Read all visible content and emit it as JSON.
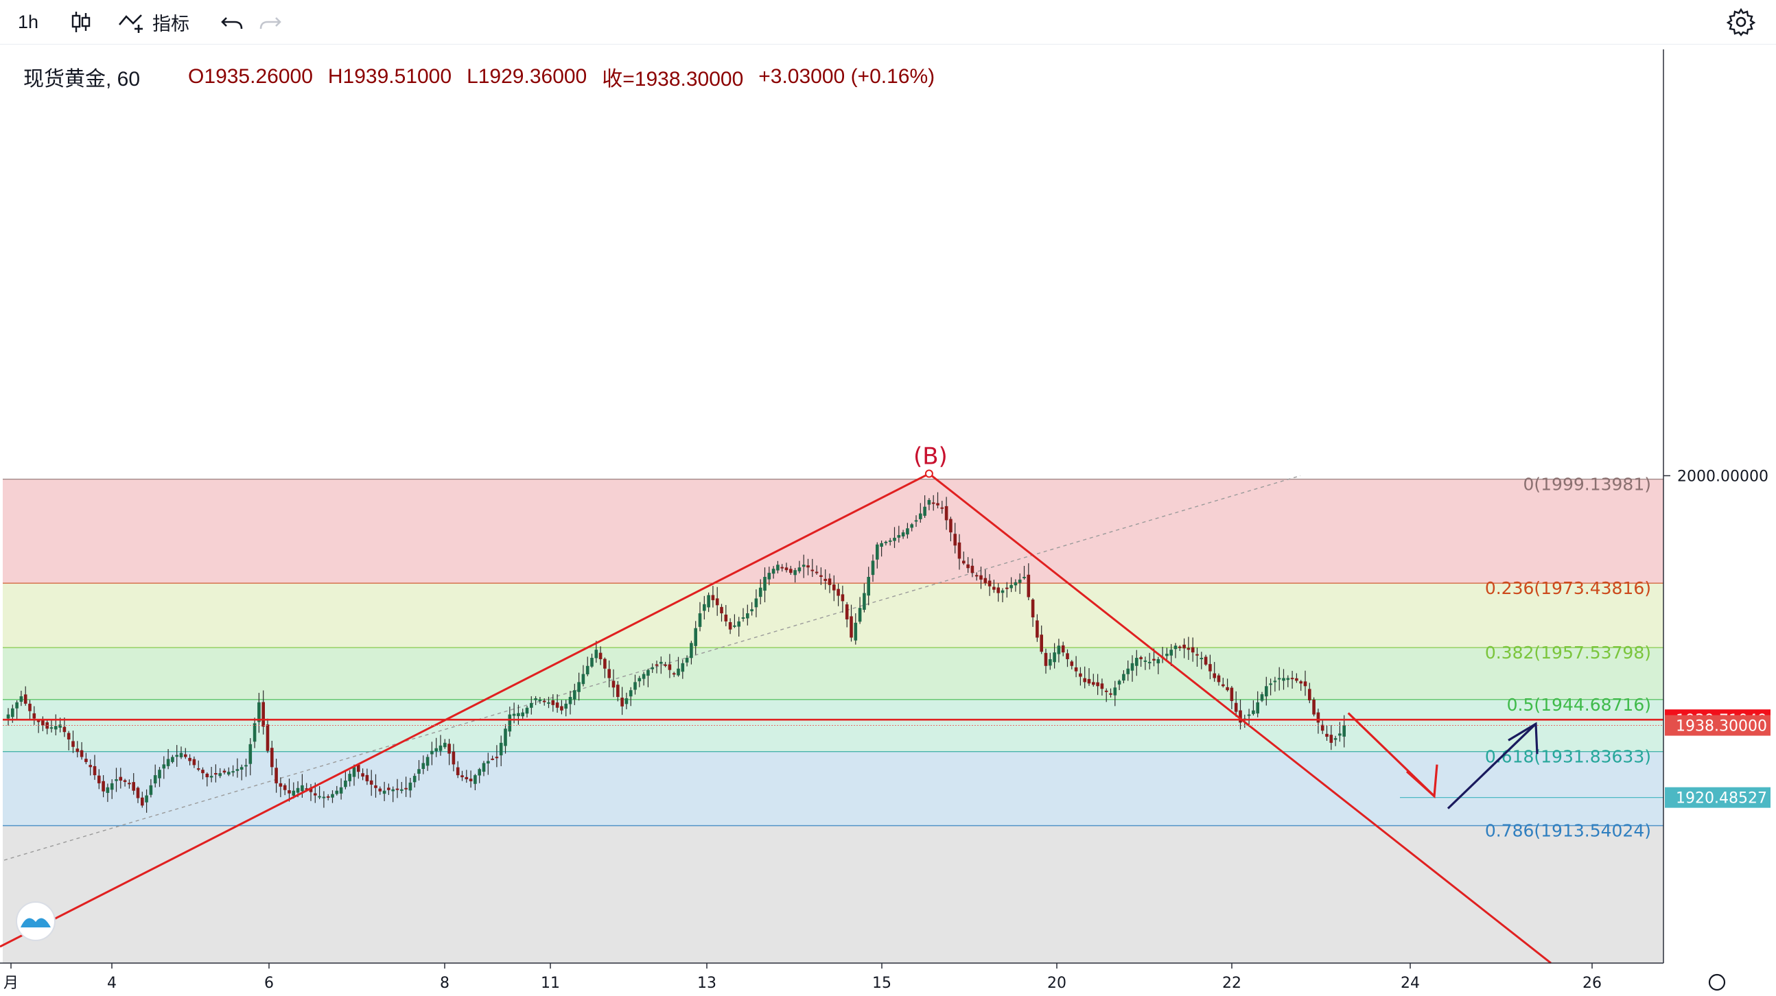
{
  "toolbar": {
    "interval": "1h",
    "indicators_label": "指标"
  },
  "legend": {
    "symbol": "现货黄金, 60",
    "open": "O1935.26000",
    "high": "H1939.51000",
    "low": "L1929.36000",
    "close": "收=1938.30000",
    "change": "+3.03000 (+0.16%)"
  },
  "colors": {
    "up": "#26a69a",
    "down": "#8b1a1a",
    "candle_body": "#1f6d4a",
    "zone_top": "#f6d1d3",
    "zone_236": "#ebf3d4",
    "zone_382": "#d6f1d5",
    "zone_500": "#d3f1e4",
    "zone_618": "#d3e5f2",
    "zone_bottom": "#e4e4e4",
    "wave_line": "#e02020",
    "projection_up": "#1a1a5e"
  },
  "chart_data": {
    "type": "candlestick",
    "symbol": "现货黄金",
    "interval": "60",
    "wave_label": "(B)",
    "x_ticks": [
      "月",
      "4",
      "6",
      "8",
      "11",
      "13",
      "15",
      "20",
      "22",
      "24",
      "26"
    ],
    "price_scale": {
      "label": "2000.00000",
      "price_labels": [
        {
          "text": "1939.71049",
          "value": 1939.71049,
          "bg": "#f20f1a"
        },
        {
          "text": "1938.30000",
          "value": 1938.3,
          "bg": "#e4504b"
        },
        {
          "text": "1920.48527",
          "value": 1920.48527,
          "bg": "#4cb8c4"
        }
      ]
    },
    "fib_levels": [
      {
        "ratio": "0",
        "value": 1999.13981,
        "text": "0(1999.13981)",
        "color": "#8a7070"
      },
      {
        "ratio": "0.236",
        "value": 1973.43816,
        "text": "0.236(1973.43816)",
        "color": "#cc4a1c"
      },
      {
        "ratio": "0.382",
        "value": 1957.53798,
        "text": "0.382(1957.53798)",
        "color": "#7bc53c"
      },
      {
        "ratio": "0.5",
        "value": 1944.68716,
        "text": "0.5(1944.68716)",
        "color": "#3fba4a"
      },
      {
        "ratio": "0.618",
        "value": 1931.83633,
        "text": "0.618(1931.83633)",
        "color": "#26a69a"
      },
      {
        "ratio": "0.786",
        "value": 1913.54024,
        "text": "0.786(1913.54024)",
        "color": "#2f7fc0"
      }
    ],
    "horizontal_line": 1939.71049,
    "close_line": 1938.3,
    "target_line": 1920.48527,
    "path": [
      [
        0,
        1941
      ],
      [
        3,
        1945.5
      ],
      [
        6,
        1940
      ],
      [
        9,
        1937.5
      ],
      [
        12,
        1938.5
      ],
      [
        15,
        1933
      ],
      [
        19,
        1928
      ],
      [
        22,
        1922
      ],
      [
        25,
        1925
      ],
      [
        28,
        1924
      ],
      [
        31,
        1918.5
      ],
      [
        34,
        1926
      ],
      [
        37,
        1930
      ],
      [
        40,
        1931.5
      ],
      [
        43,
        1928.5
      ],
      [
        46,
        1925.5
      ],
      [
        49,
        1926.5
      ],
      [
        52,
        1927
      ],
      [
        55,
        1928.5
      ],
      [
        58,
        1944
      ],
      [
        60,
        1932
      ],
      [
        62,
        1924
      ],
      [
        65,
        1921.5
      ],
      [
        68,
        1923.5
      ],
      [
        71,
        1921
      ],
      [
        74,
        1920.5
      ],
      [
        77,
        1923
      ],
      [
        80,
        1928
      ],
      [
        83,
        1924.5
      ],
      [
        86,
        1922
      ],
      [
        89,
        1922.5
      ],
      [
        92,
        1922.5
      ],
      [
        95,
        1927.5
      ],
      [
        98,
        1932
      ],
      [
        101,
        1934
      ],
      [
        104,
        1926
      ],
      [
        107,
        1924.5
      ],
      [
        110,
        1929
      ],
      [
        113,
        1930.5
      ],
      [
        116,
        1941
      ],
      [
        119,
        1941.5
      ],
      [
        122,
        1945
      ],
      [
        125,
        1944
      ],
      [
        128,
        1942
      ],
      [
        131,
        1947
      ],
      [
        134,
        1953
      ],
      [
        136,
        1957
      ],
      [
        139,
        1950
      ],
      [
        142,
        1943
      ],
      [
        145,
        1949
      ],
      [
        148,
        1952
      ],
      [
        151,
        1954
      ],
      [
        154,
        1951
      ],
      [
        157,
        1955
      ],
      [
        160,
        1966
      ],
      [
        162,
        1970.5
      ],
      [
        164,
        1968
      ],
      [
        167,
        1962
      ],
      [
        170,
        1965
      ],
      [
        172,
        1967
      ],
      [
        175,
        1975
      ],
      [
        178,
        1978
      ],
      [
        181,
        1976
      ],
      [
        184,
        1978
      ],
      [
        187,
        1976
      ],
      [
        190,
        1973
      ],
      [
        193,
        1969
      ],
      [
        195,
        1960
      ],
      [
        198,
        1971
      ],
      [
        201,
        1983
      ],
      [
        204,
        1984
      ],
      [
        207,
        1986
      ],
      [
        210,
        1989
      ],
      [
        213,
        1994
      ],
      [
        216,
        1992
      ],
      [
        218,
        1986
      ],
      [
        220,
        1979.5
      ],
      [
        223,
        1976
      ],
      [
        226,
        1973.5
      ],
      [
        229,
        1971
      ],
      [
        232,
        1973
      ],
      [
        235,
        1975
      ],
      [
        238,
        1960
      ],
      [
        240,
        1953
      ],
      [
        243,
        1958
      ],
      [
        246,
        1953
      ],
      [
        249,
        1949
      ],
      [
        252,
        1948
      ],
      [
        255,
        1946
      ],
      [
        258,
        1951
      ],
      [
        261,
        1955
      ],
      [
        264,
        1954
      ],
      [
        267,
        1955
      ],
      [
        270,
        1958
      ],
      [
        273,
        1957
      ],
      [
        276,
        1955
      ],
      [
        279,
        1950
      ],
      [
        282,
        1947
      ],
      [
        285,
        1939
      ],
      [
        288,
        1942
      ],
      [
        291,
        1948
      ],
      [
        294,
        1950
      ],
      [
        297,
        1950
      ],
      [
        300,
        1948
      ],
      [
        302,
        1941
      ],
      [
        304,
        1937
      ],
      [
        306,
        1934
      ],
      [
        308,
        1936.3
      ],
      [
        309,
        1938.3
      ]
    ],
    "future_slots": 110
  }
}
